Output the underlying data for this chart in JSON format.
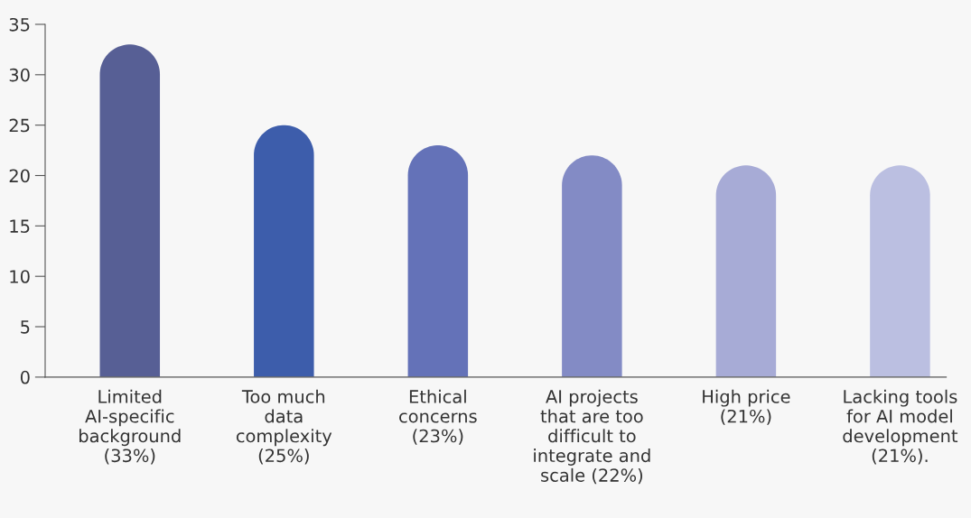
{
  "chart_data": {
    "type": "bar",
    "categories": [
      "Limited\nAI-specific\nbackground\n(33%)",
      "Too much\ndata\ncomplexity\n(25%)",
      "Ethical\nconcerns\n(23%)",
      "AI projects\nthat are too\ndifficult to\nintegrate and\nscale (22%)",
      "High price\n(21%)",
      "Lacking tools\nfor AI model\ndevelopment\n(21%)."
    ],
    "values": [
      33,
      25,
      23,
      22,
      21,
      21
    ],
    "colors": [
      "#575f95",
      "#3d5dab",
      "#6472b8",
      "#838bc5",
      "#a7abd6",
      "#bbbfe1"
    ],
    "ylim": [
      0,
      35
    ],
    "yticks": [
      0,
      5,
      10,
      15,
      20,
      25,
      30,
      35
    ],
    "grid": false,
    "legend": false
  }
}
